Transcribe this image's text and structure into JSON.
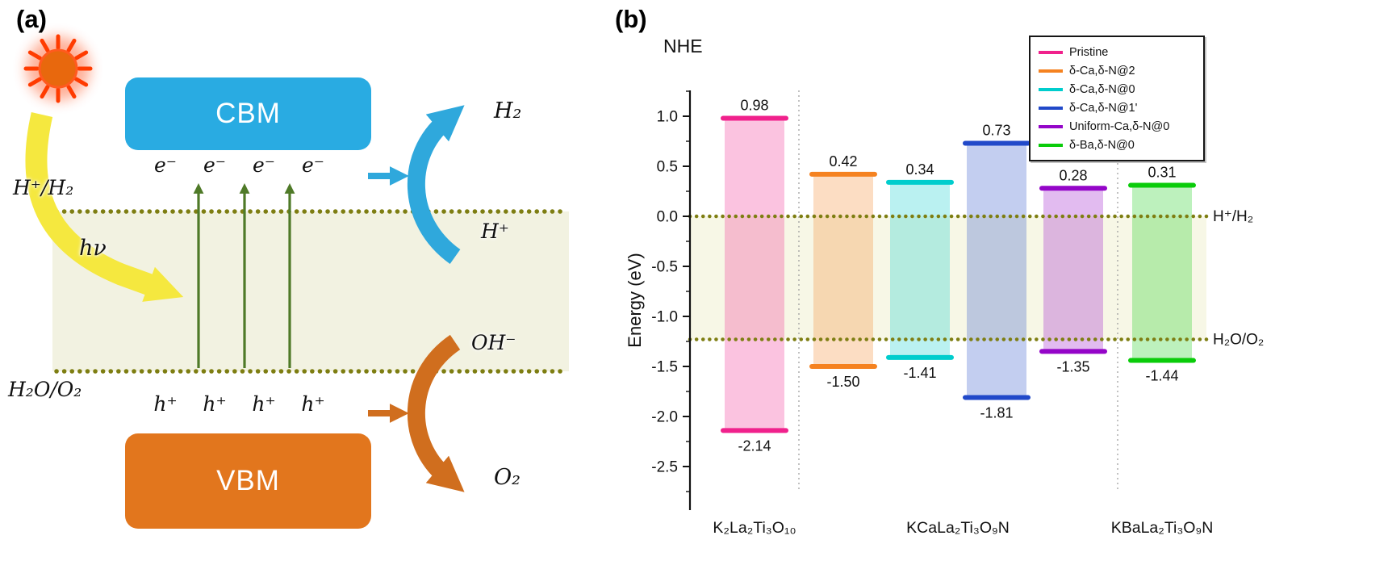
{
  "panel_a": {
    "label": "(a)",
    "cbm": "CBM",
    "vbm": "VBM",
    "photon": "hν",
    "h2_level": "H⁺/H₂",
    "o2_level": "H₂O/O₂",
    "electrons": [
      "e⁻",
      "e⁻",
      "e⁻",
      "e⁻"
    ],
    "holes": [
      "h⁺",
      "h⁺",
      "h⁺",
      "h⁺"
    ],
    "h2": "H₂",
    "h_plus": "H⁺",
    "oh_minus": "OH⁻",
    "o2": "O₂",
    "colors": {
      "cbm_box": "#29ABE2",
      "vbm_box": "#E2761D",
      "band": "#F2F2E1",
      "dotted_line": "#7E7E12",
      "electron_arrow": "#4F7A28",
      "photon_arrow": "#F5E83F",
      "reduction_arrow": "#2FA8DC",
      "oxidation_arrow": "#D06E1E",
      "sun_core": "#E8680D",
      "sun_rays": "#FF3B00"
    }
  },
  "panel_b": {
    "label": "(b)",
    "nhe": "NHE"
  },
  "chart_data": {
    "type": "bar",
    "subtype": "band-alignment",
    "axis_annotation": "NHE",
    "ylabel": "Energy (eV)",
    "ylim": [
      -2.9,
      1.25
    ],
    "yticks": [
      1.0,
      0.5,
      0.0,
      -0.5,
      -1.0,
      -1.5,
      -2.0,
      -2.5
    ],
    "grid": false,
    "legend_position": "top-right",
    "reference_lines": [
      {
        "label": "H⁺/H₂",
        "value": 0.0
      },
      {
        "label": "H₂O/O₂",
        "value": -1.23
      }
    ],
    "shaded_region": {
      "from": 0.0,
      "to": -1.23,
      "color": "#F7F7E6"
    },
    "series": [
      {
        "name": "Pristine",
        "color": "#F0218C",
        "cbm": 0.98,
        "vbm": -2.14,
        "group": 0
      },
      {
        "name": "δ-Ca,δ-N@2",
        "color": "#F58220",
        "cbm": 0.42,
        "vbm": -1.5,
        "group": 1
      },
      {
        "name": "δ-Ca,δ-N@0",
        "color": "#00CDCD",
        "cbm": 0.34,
        "vbm": -1.41,
        "group": 1
      },
      {
        "name": "δ-Ca,δ-N@1'",
        "color": "#2149C9",
        "cbm": 0.73,
        "vbm": -1.81,
        "group": 1
      },
      {
        "name": "Uniform-Ca,δ-N@0",
        "color": "#9405C8",
        "cbm": 0.28,
        "vbm": -1.35,
        "group": 1
      },
      {
        "name": "δ-Ba,δ-N@0",
        "color": "#0ACC0A",
        "cbm": 0.31,
        "vbm": -1.44,
        "group": 2
      }
    ],
    "groups": [
      "K₂La₂Ti₃O₁₀",
      "KCaLa₂Ti₃O₉N",
      "KBaLa₂Ti₃O₉N"
    ]
  }
}
